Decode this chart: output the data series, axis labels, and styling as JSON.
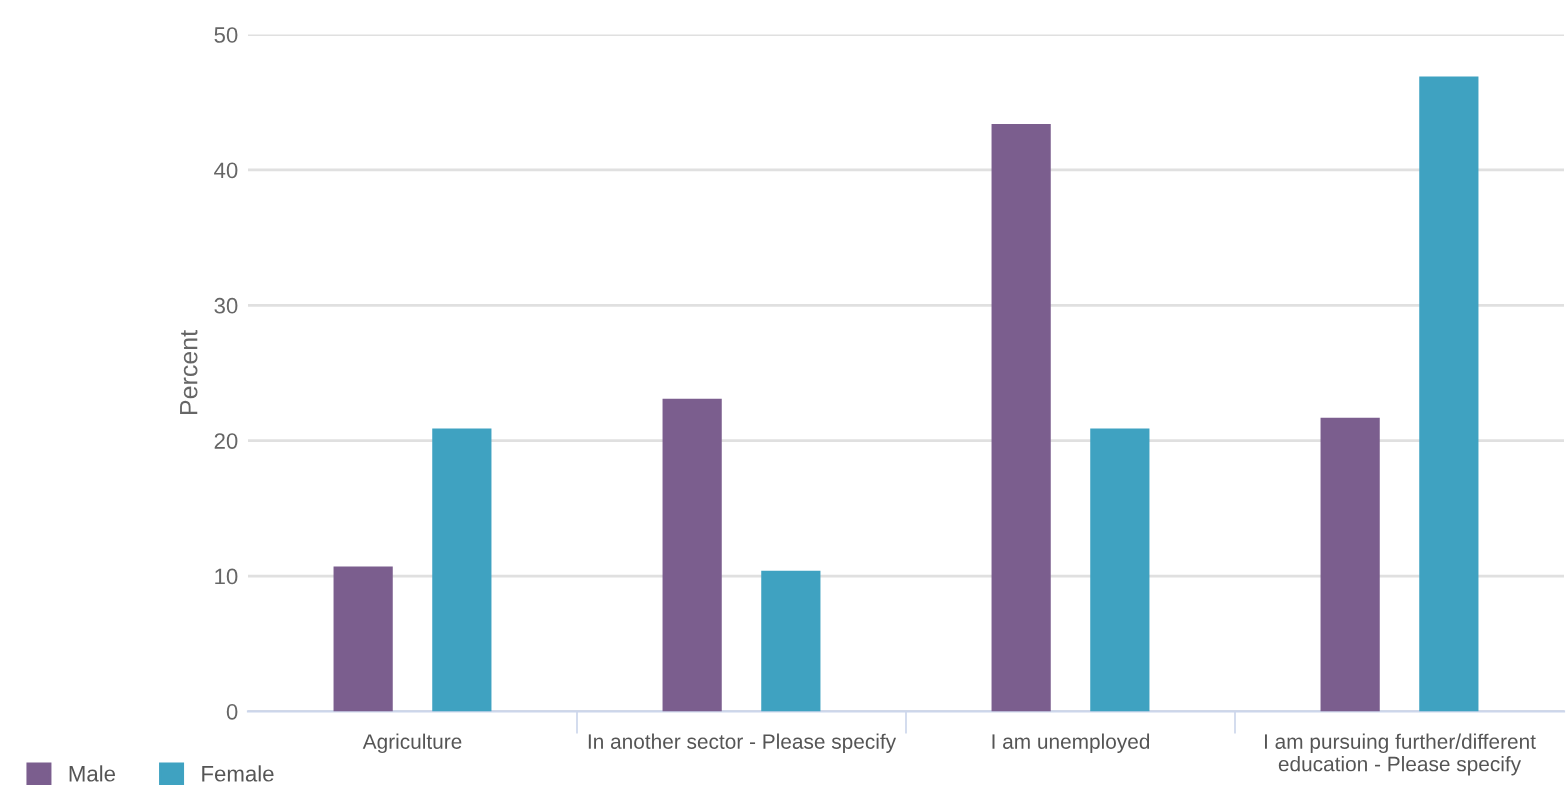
{
  "chart_data": {
    "type": "bar",
    "ylabel": "Percent",
    "categories": [
      "Agriculture",
      "In another sector - Please specify",
      "I am unemployed",
      "I am pursuing further/different\neducation - Please specify"
    ],
    "series": [
      {
        "name": "Male",
        "color": "#7b5e8e",
        "values": [
          10.7,
          23.1,
          43.4,
          21.7
        ]
      },
      {
        "name": "Female",
        "color": "#3fa2c1",
        "values": [
          20.9,
          10.4,
          20.9,
          46.9
        ]
      }
    ],
    "ylim": [
      0,
      50
    ],
    "yticks": [
      0,
      10,
      20,
      30,
      40,
      50
    ],
    "grid": "y",
    "legend": "bottom left"
  }
}
